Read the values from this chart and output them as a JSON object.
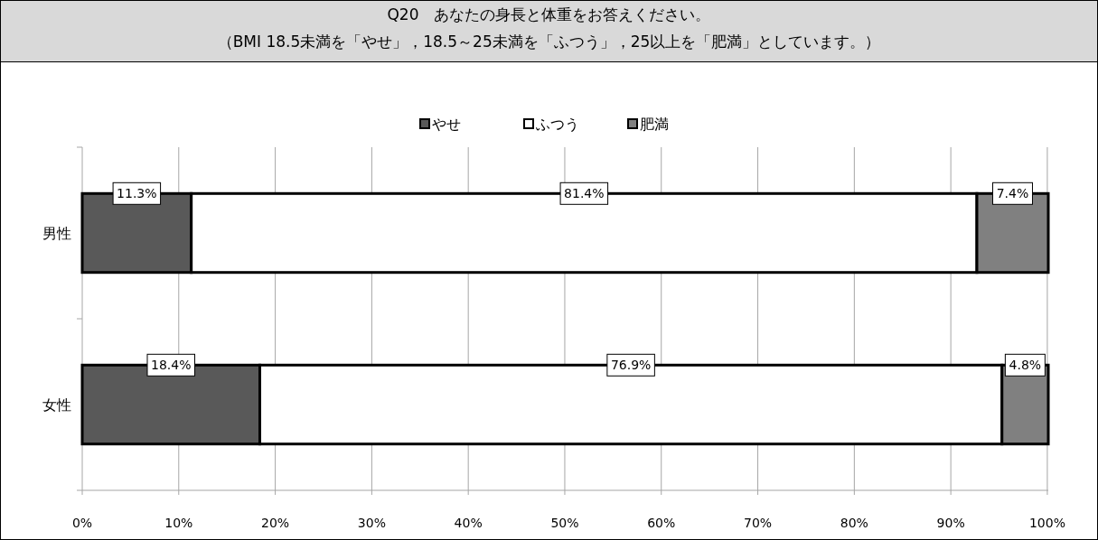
{
  "chart_data": {
    "type": "bar",
    "orientation": "horizontal",
    "stacked": true,
    "title": "Q20　あなたの身長と体重をお答えください。",
    "subtitle": "（BMI 18.5未満を「やせ」，18.5～25未満を「ふつう」，25以上を「肥満」としています。）",
    "categories": [
      "男性",
      "女性"
    ],
    "series": [
      {
        "name": "やせ",
        "color": "#595959",
        "values": [
          11.3,
          18.4
        ],
        "value_labels": [
          "11.3%",
          "18.4%"
        ]
      },
      {
        "name": "ふつう",
        "color": "#ffffff",
        "values": [
          81.4,
          76.9
        ],
        "value_labels": [
          "81.4%",
          "76.9%"
        ]
      },
      {
        "name": "肥満",
        "color": "#808080",
        "values": [
          7.4,
          4.8
        ],
        "value_labels": [
          "7.4%",
          "4.8%"
        ]
      }
    ],
    "xlim": [
      0,
      100.1
    ],
    "xticks": [
      {
        "value": 0,
        "label": "0%"
      },
      {
        "value": 10,
        "label": "10%"
      },
      {
        "value": 20,
        "label": "20%"
      },
      {
        "value": 30,
        "label": "30%"
      },
      {
        "value": 40,
        "label": "40%"
      },
      {
        "value": 50,
        "label": "50%"
      },
      {
        "value": 60,
        "label": "60%"
      },
      {
        "value": 70,
        "label": "70%"
      },
      {
        "value": 80,
        "label": "80%"
      },
      {
        "value": 90,
        "label": "90%"
      },
      {
        "value": 100,
        "label": "100%"
      }
    ],
    "grid": "x",
    "legend": "top"
  }
}
